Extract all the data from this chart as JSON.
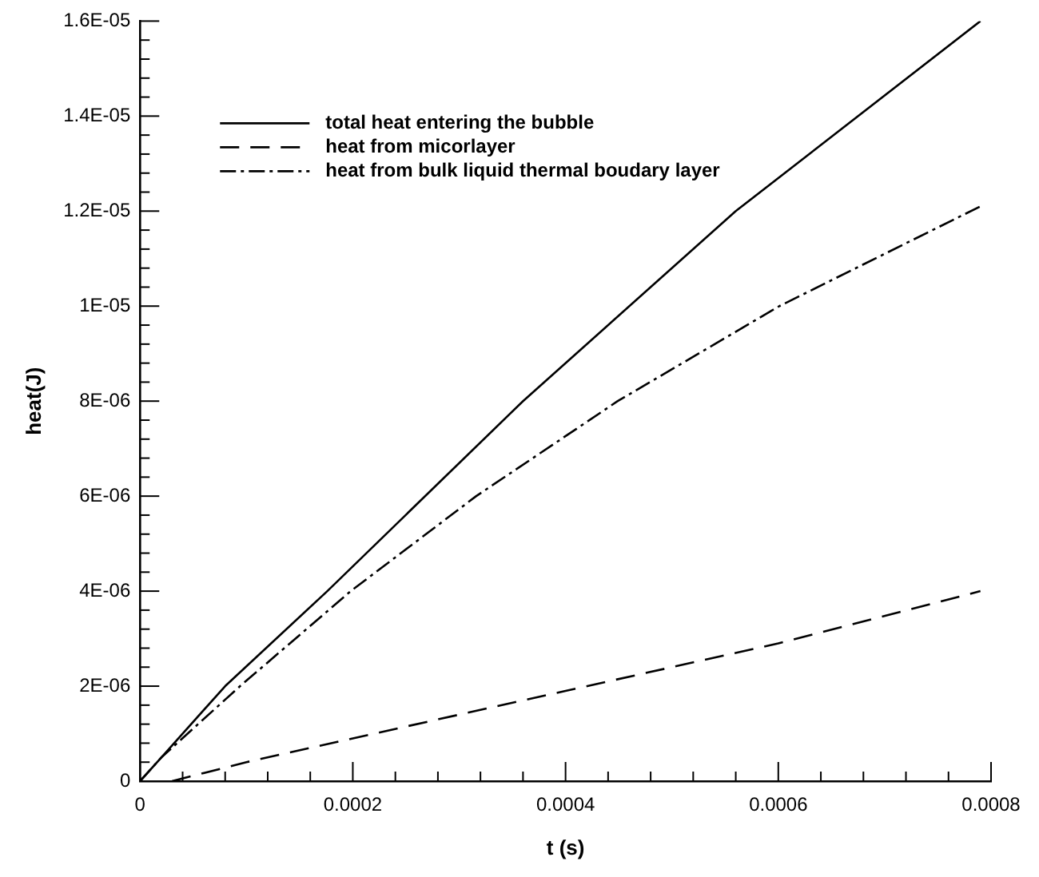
{
  "chart_data": {
    "type": "line",
    "xlabel": "t (s)",
    "ylabel": "heat(J)",
    "legend": "top left",
    "grid": false,
    "marker": "none",
    "xlim": [
      0,
      0.0008
    ],
    "ylim": [
      0,
      1.6e-05
    ],
    "xticks": [
      0,
      {
        "value": 4e-05,
        "label": null
      },
      {
        "value": 8e-05,
        "label": null
      },
      {
        "value": 0.00012,
        "label": null
      },
      {
        "value": 0.00016,
        "label": null
      },
      0.0002,
      {
        "value": 0.00024,
        "label": null
      },
      {
        "value": 0.00028,
        "label": null
      },
      {
        "value": 0.00032,
        "label": null
      },
      {
        "value": 0.00036,
        "label": null
      },
      0.0004,
      {
        "value": 0.00044,
        "label": null
      },
      {
        "value": 0.00048,
        "label": null
      },
      {
        "value": 0.00052,
        "label": null
      },
      {
        "value": 0.00056,
        "label": null
      },
      0.0006,
      {
        "value": 0.00064,
        "label": null
      },
      {
        "value": 0.00068,
        "label": null
      },
      {
        "value": 0.00072,
        "label": null
      },
      {
        "value": 0.00076,
        "label": null
      },
      0.0008
    ],
    "yticks": [
      0,
      {
        "value": 4e-07,
        "label": null
      },
      {
        "value": 8e-07,
        "label": null
      },
      {
        "value": 1.2e-06,
        "label": null
      },
      {
        "value": 1.6e-06,
        "label": null
      },
      {
        "value": 2e-06,
        "label": "2E-06"
      },
      {
        "value": 2.4e-06,
        "label": null
      },
      {
        "value": 2.8e-06,
        "label": null
      },
      {
        "value": 3.2e-06,
        "label": null
      },
      {
        "value": 3.6e-06,
        "label": null
      },
      {
        "value": 4e-06,
        "label": "4E-06"
      },
      {
        "value": 4.4e-06,
        "label": null
      },
      {
        "value": 4.8e-06,
        "label": null
      },
      {
        "value": 5.2e-06,
        "label": null
      },
      {
        "value": 5.6e-06,
        "label": null
      },
      {
        "value": 6e-06,
        "label": "6E-06"
      },
      {
        "value": 6.4e-06,
        "label": null
      },
      {
        "value": 6.8e-06,
        "label": null
      },
      {
        "value": 7.2e-06,
        "label": null
      },
      {
        "value": 7.6e-06,
        "label": null
      },
      {
        "value": 8e-06,
        "label": "8E-06"
      },
      {
        "value": 8.4e-06,
        "label": null
      },
      {
        "value": 8.8e-06,
        "label": null
      },
      {
        "value": 9.2e-06,
        "label": null
      },
      {
        "value": 9.6e-06,
        "label": null
      },
      {
        "value": 1e-05,
        "label": "1E-05"
      },
      {
        "value": 1.04e-05,
        "label": null
      },
      {
        "value": 1.08e-05,
        "label": null
      },
      {
        "value": 1.12e-05,
        "label": null
      },
      {
        "value": 1.16e-05,
        "label": null
      },
      {
        "value": 1.2e-05,
        "label": "1.2E-05"
      },
      {
        "value": 1.24e-05,
        "label": null
      },
      {
        "value": 1.28e-05,
        "label": null
      },
      {
        "value": 1.32e-05,
        "label": null
      },
      {
        "value": 1.36e-05,
        "label": null
      },
      {
        "value": 1.4e-05,
        "label": "1.4E-05"
      },
      {
        "value": 1.44e-05,
        "label": null
      },
      {
        "value": 1.48e-05,
        "label": null
      },
      {
        "value": 1.52e-05,
        "label": null
      },
      {
        "value": 1.56e-05,
        "label": null
      },
      {
        "value": 1.6e-05,
        "label": "1.6E-05"
      }
    ],
    "series": [
      {
        "name": "total heat entering the bubble",
        "color": "#000000",
        "line_style": "solid",
        "x": [
          0,
          2e-05,
          8e-05,
          0.000176,
          0.00036,
          0.00056,
          0.00079
        ],
        "values": [
          0,
          5e-07,
          2e-06,
          4e-06,
          8e-06,
          1.2e-05,
          1.6e-05
        ]
      },
      {
        "name": "heat from micorlayer",
        "color": "#000000",
        "line_style": "dashed",
        "x": [
          3e-05,
          0.0001,
          0.0002,
          0.0004,
          0.0006,
          0.00079
        ],
        "values": [
          0,
          4e-07,
          9e-07,
          1.9e-06,
          2.9e-06,
          4e-06
        ]
      },
      {
        "name": "heat from bulk liquid thermal boudary layer",
        "color": "#000000",
        "line_style": "dashdot",
        "x": [
          0,
          2e-05,
          9.4e-05,
          0.000198,
          0.000316,
          0.000449,
          0.000601,
          0.00079
        ],
        "values": [
          0,
          5e-07,
          2e-06,
          4e-06,
          6e-06,
          8e-06,
          1e-05,
          1.21e-05
        ]
      }
    ]
  }
}
